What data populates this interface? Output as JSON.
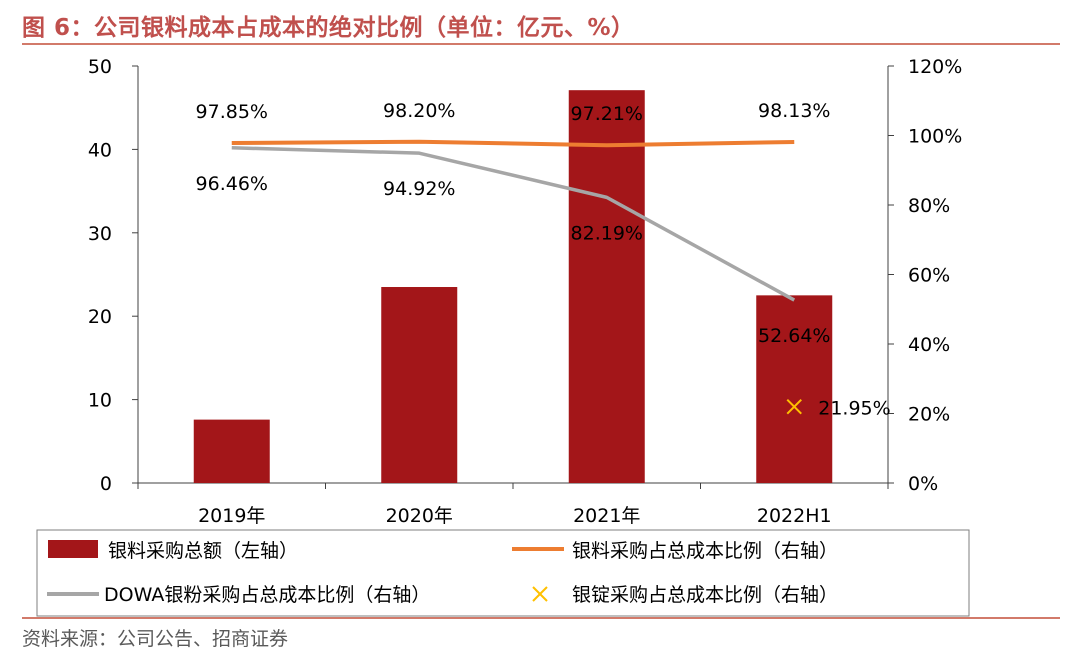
{
  "title": "图 6：公司银料成本占成本的绝对比例（单位：亿元、%）",
  "source": "资料来源：公司公告、招商证券",
  "colors": {
    "title": "#c0504d",
    "bar": "#a31619",
    "orange": "#ed7d31",
    "gray": "#a6a6a6",
    "marker": "#ffc000",
    "axis": "#404040"
  },
  "chart_data": {
    "type": "bar",
    "categories": [
      "2019年",
      "2020年",
      "2021年",
      "2022H1"
    ],
    "left_axis": {
      "min": 0,
      "max": 50,
      "ticks": [
        "0",
        "10",
        "20",
        "30",
        "40",
        "50"
      ]
    },
    "right_axis": {
      "min": 0,
      "max": 120,
      "ticks": [
        "0%",
        "20%",
        "40%",
        "60%",
        "80%",
        "100%",
        "120%"
      ]
    },
    "series": [
      {
        "name": "银料采购总额（左轴）",
        "type": "bar",
        "axis": "left",
        "values": [
          7.6,
          23.5,
          47.1,
          22.5
        ]
      },
      {
        "name": "银料采购占总成本比例（右轴）",
        "type": "line",
        "axis": "right",
        "values": [
          97.85,
          98.2,
          97.21,
          98.13
        ],
        "labels": [
          "97.85%",
          "98.20%",
          "97.21%",
          "98.13%"
        ]
      },
      {
        "name": "DOWA银粉采购占总成本比例（右轴）",
        "type": "line",
        "axis": "right",
        "values": [
          96.46,
          94.92,
          82.19,
          52.64
        ],
        "labels": [
          "96.46%",
          "94.92%",
          "82.19%",
          "52.64%"
        ]
      },
      {
        "name": "银锭采购占总成本比例（右轴）",
        "type": "scatter",
        "axis": "right",
        "values": [
          null,
          null,
          null,
          21.95
        ],
        "labels": [
          "",
          "",
          "",
          "21.95%"
        ]
      }
    ]
  }
}
